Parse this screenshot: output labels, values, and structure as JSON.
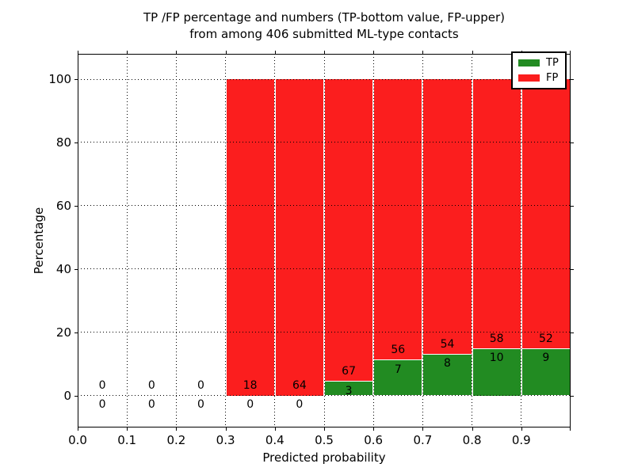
{
  "figure": {
    "title_line1": "TP /FP percentage and numbers (TP-bottom value, FP-upper)",
    "title_line2": "from among 406 submitted ML-type contacts",
    "xlabel": "Predicted probability",
    "ylabel": "Percentage"
  },
  "legend": {
    "items": [
      {
        "label": "TP",
        "color": "#228b22"
      },
      {
        "label": "FP",
        "color": "#fb1e1e"
      }
    ]
  },
  "chart_data": {
    "type": "bar",
    "stacked": true,
    "title": "TP /FP percentage and numbers (TP-bottom value, FP-upper) from among 406 submitted ML-type contacts",
    "xlabel": "Predicted probability",
    "ylabel": "Percentage",
    "total_contacts": 406,
    "bin_edges": [
      0.0,
      0.1,
      0.2,
      0.3,
      0.4,
      0.5,
      0.6,
      0.7,
      0.8,
      0.9,
      1.0
    ],
    "xtick_labels": [
      "0.0",
      "0.1",
      "0.2",
      "0.3",
      "0.4",
      "0.5",
      "0.6",
      "0.7",
      "0.8",
      "0.9"
    ],
    "ytick_values": [
      0,
      20,
      40,
      60,
      80,
      100
    ],
    "ytick_labels": [
      "0",
      "20",
      "40",
      "60",
      "80",
      "100"
    ],
    "ylim": [
      -10.1,
      108.0
    ],
    "grid": true,
    "grid_style": "dotted",
    "legend_position": "upper right",
    "series": [
      {
        "name": "TP",
        "color": "#228b22",
        "counts": [
          0,
          0,
          0,
          0,
          0,
          3,
          7,
          8,
          10,
          9
        ]
      },
      {
        "name": "FP",
        "color": "#fb1e1e",
        "counts": [
          0,
          0,
          0,
          18,
          64,
          67,
          56,
          54,
          58,
          52
        ]
      }
    ],
    "tp_percent_per_bin": [
      0,
      0,
      0,
      0,
      0,
      4.29,
      11.11,
      12.9,
      14.71,
      14.75
    ],
    "fp_percent_per_bin": [
      0,
      0,
      0,
      100,
      100,
      95.71,
      88.89,
      87.1,
      85.29,
      85.25
    ],
    "bar_labels": {
      "upper_fp": [
        "0",
        "0",
        "0",
        "18",
        "64",
        "67",
        "56",
        "54",
        "58",
        "52"
      ],
      "lower_tp": [
        "0",
        "0",
        "0",
        "0",
        "0",
        "3",
        "7",
        "8",
        "10",
        "9"
      ]
    }
  }
}
